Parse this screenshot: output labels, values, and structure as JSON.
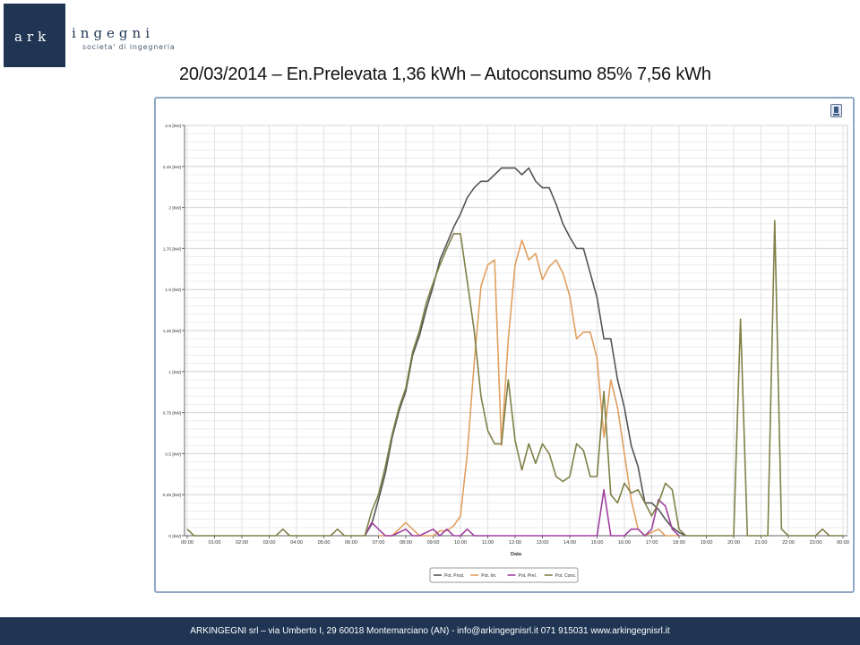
{
  "header": {
    "logo_ark": "ark",
    "logo_ingegni": "ingegni",
    "logo_sub": "societa' di ingegneria",
    "title": "20/03/2014 – En.Prelevata 1,36 kWh – Autoconsumo 85% 7,56 kWh"
  },
  "footer": {
    "text": "ARKINGEGNI srl – via Umberto I, 29 60018 Montemarciano (AN) - info@arkingegnisrl.it 071 915031 www.arkingegnisrl.it"
  },
  "colors": {
    "brand": "#1f3553",
    "frame": "#8fa8c6",
    "prod": "#555555",
    "imm": "#e0a060",
    "prel": "#a040a0",
    "cons": "#808048"
  },
  "chart_data": {
    "type": "line",
    "xlabel": "Data",
    "ylabel": "",
    "ylim": [
      0,
      2.5
    ],
    "yticks": [
      0,
      0.25,
      0.5,
      0.75,
      1,
      1.25,
      1.5,
      1.75,
      2,
      2.25,
      2.5
    ],
    "ytick_labels": [
      "0 [kW]",
      "0.25 [kW]",
      "0.5 [kW]",
      "0.75 [kW]",
      "1 [kW]",
      "1.25 [kW]",
      "1.5 [kW]",
      "1.75 [kW]",
      "2 [kW]",
      "2.25 [kW]",
      "2.5 [kW]"
    ],
    "xlim": [
      0,
      24
    ],
    "xticks": [
      "00:00",
      "01:00",
      "02:00",
      "03:00",
      "04:00",
      "05:00",
      "06:00",
      "07:00",
      "08:00",
      "09:00",
      "10:00",
      "11:00",
      "12:00",
      "13:00",
      "14:00",
      "15:00",
      "16:00",
      "17:00",
      "18:00",
      "19:00",
      "20:00",
      "21:00",
      "22:00",
      "23:00",
      "00:00"
    ],
    "grid": true,
    "legend_position": "bottom-center",
    "series": [
      {
        "name": "Pot. Prod.",
        "color": "#555555",
        "points": [
          [
            6.5,
            0
          ],
          [
            6.75,
            0.07
          ],
          [
            7,
            0.22
          ],
          [
            7.25,
            0.38
          ],
          [
            7.5,
            0.6
          ],
          [
            7.75,
            0.76
          ],
          [
            8,
            0.88
          ],
          [
            8.25,
            1.1
          ],
          [
            8.5,
            1.22
          ],
          [
            8.75,
            1.38
          ],
          [
            9,
            1.52
          ],
          [
            9.25,
            1.68
          ],
          [
            9.5,
            1.78
          ],
          [
            9.75,
            1.88
          ],
          [
            10,
            1.96
          ],
          [
            10.25,
            2.06
          ],
          [
            10.5,
            2.12
          ],
          [
            10.75,
            2.16
          ],
          [
            11,
            2.16
          ],
          [
            11.25,
            2.2
          ],
          [
            11.5,
            2.24
          ],
          [
            11.75,
            2.24
          ],
          [
            12,
            2.24
          ],
          [
            12.25,
            2.2
          ],
          [
            12.5,
            2.24
          ],
          [
            12.75,
            2.16
          ],
          [
            13,
            2.12
          ],
          [
            13.25,
            2.12
          ],
          [
            13.5,
            2.02
          ],
          [
            13.75,
            1.9
          ],
          [
            14,
            1.82
          ],
          [
            14.25,
            1.75
          ],
          [
            14.5,
            1.75
          ],
          [
            14.75,
            1.6
          ],
          [
            15,
            1.45
          ],
          [
            15.25,
            1.2
          ],
          [
            15.5,
            1.2
          ],
          [
            15.75,
            0.95
          ],
          [
            16,
            0.78
          ],
          [
            16.25,
            0.55
          ],
          [
            16.5,
            0.42
          ],
          [
            16.75,
            0.2
          ],
          [
            17,
            0.2
          ],
          [
            17.25,
            0.16
          ],
          [
            17.5,
            0.1
          ],
          [
            17.75,
            0.05
          ],
          [
            18,
            0.02
          ],
          [
            18.25,
            0
          ]
        ]
      },
      {
        "name": "Pot. Im.",
        "color": "#e0a060",
        "points": [
          [
            7,
            0
          ],
          [
            7.5,
            0
          ],
          [
            8,
            0.08
          ],
          [
            8.25,
            0.04
          ],
          [
            8.5,
            0
          ],
          [
            9,
            0
          ],
          [
            9.25,
            0.03
          ],
          [
            9.5,
            0.03
          ],
          [
            9.75,
            0.06
          ],
          [
            10,
            0.12
          ],
          [
            10.25,
            0.5
          ],
          [
            10.5,
            1.05
          ],
          [
            10.75,
            1.52
          ],
          [
            11,
            1.65
          ],
          [
            11.25,
            1.68
          ],
          [
            11.5,
            0.55
          ],
          [
            11.75,
            1.2
          ],
          [
            12,
            1.65
          ],
          [
            12.25,
            1.8
          ],
          [
            12.5,
            1.68
          ],
          [
            12.75,
            1.72
          ],
          [
            13,
            1.56
          ],
          [
            13.25,
            1.64
          ],
          [
            13.5,
            1.68
          ],
          [
            13.75,
            1.6
          ],
          [
            14,
            1.46
          ],
          [
            14.25,
            1.2
          ],
          [
            14.5,
            1.24
          ],
          [
            14.75,
            1.24
          ],
          [
            15,
            1.08
          ],
          [
            15.25,
            0.6
          ],
          [
            15.5,
            0.95
          ],
          [
            15.75,
            0.78
          ],
          [
            16,
            0.5
          ],
          [
            16.25,
            0.22
          ],
          [
            16.5,
            0.04
          ],
          [
            16.75,
            0
          ],
          [
            17,
            0.02
          ],
          [
            17.25,
            0.04
          ],
          [
            17.5,
            0
          ],
          [
            18,
            0
          ]
        ]
      },
      {
        "name": "Pot. Prel.",
        "color": "#a040a0",
        "points": [
          [
            6.5,
            0
          ],
          [
            6.75,
            0.08
          ],
          [
            7,
            0.04
          ],
          [
            7.25,
            0
          ],
          [
            7.5,
            0
          ],
          [
            8,
            0.04
          ],
          [
            8.25,
            0
          ],
          [
            8.5,
            0
          ],
          [
            9,
            0.04
          ],
          [
            9.25,
            0
          ],
          [
            9.5,
            0.04
          ],
          [
            9.75,
            0
          ],
          [
            10,
            0
          ],
          [
            10.25,
            0.04
          ],
          [
            10.5,
            0
          ],
          [
            11,
            0
          ],
          [
            15,
            0
          ],
          [
            15.25,
            0.28
          ],
          [
            15.5,
            0
          ],
          [
            16,
            0
          ],
          [
            16.25,
            0.04
          ],
          [
            16.5,
            0.04
          ],
          [
            16.75,
            0
          ],
          [
            17,
            0.04
          ],
          [
            17.25,
            0.22
          ],
          [
            17.5,
            0.18
          ],
          [
            17.75,
            0.04
          ],
          [
            18,
            0
          ]
        ]
      },
      {
        "name": "Pot. Cons.",
        "color": "#808048",
        "points": [
          [
            0,
            0.04
          ],
          [
            0.25,
            0
          ],
          [
            1,
            0
          ],
          [
            3.25,
            0
          ],
          [
            3.5,
            0.04
          ],
          [
            3.75,
            0
          ],
          [
            5.25,
            0
          ],
          [
            5.5,
            0.04
          ],
          [
            5.75,
            0
          ],
          [
            6.5,
            0
          ],
          [
            6.75,
            0.15
          ],
          [
            7,
            0.25
          ],
          [
            7.25,
            0.42
          ],
          [
            7.5,
            0.62
          ],
          [
            7.75,
            0.78
          ],
          [
            8,
            0.9
          ],
          [
            8.25,
            1.12
          ],
          [
            8.5,
            1.25
          ],
          [
            8.75,
            1.42
          ],
          [
            9,
            1.54
          ],
          [
            9.25,
            1.65
          ],
          [
            9.5,
            1.75
          ],
          [
            9.75,
            1.84
          ],
          [
            10,
            1.84
          ],
          [
            10.25,
            1.55
          ],
          [
            10.5,
            1.25
          ],
          [
            10.75,
            0.85
          ],
          [
            11,
            0.64
          ],
          [
            11.25,
            0.56
          ],
          [
            11.5,
            0.56
          ],
          [
            11.75,
            0.95
          ],
          [
            12,
            0.58
          ],
          [
            12.25,
            0.4
          ],
          [
            12.5,
            0.56
          ],
          [
            12.75,
            0.44
          ],
          [
            13,
            0.56
          ],
          [
            13.25,
            0.5
          ],
          [
            13.5,
            0.36
          ],
          [
            13.75,
            0.33
          ],
          [
            14,
            0.36
          ],
          [
            14.25,
            0.56
          ],
          [
            14.5,
            0.52
          ],
          [
            14.75,
            0.36
          ],
          [
            15,
            0.36
          ],
          [
            15.25,
            0.88
          ],
          [
            15.5,
            0.25
          ],
          [
            15.75,
            0.2
          ],
          [
            16,
            0.32
          ],
          [
            16.25,
            0.26
          ],
          [
            16.5,
            0.28
          ],
          [
            16.75,
            0.2
          ],
          [
            17,
            0.12
          ],
          [
            17.25,
            0.2
          ],
          [
            17.5,
            0.32
          ],
          [
            17.75,
            0.28
          ],
          [
            18,
            0.04
          ],
          [
            18.25,
            0
          ],
          [
            20,
            0
          ],
          [
            20.25,
            1.32
          ],
          [
            20.5,
            0
          ],
          [
            21,
            0
          ],
          [
            21.25,
            0
          ],
          [
            21.5,
            1.92
          ],
          [
            21.75,
            0.04
          ],
          [
            22,
            0
          ],
          [
            23,
            0
          ],
          [
            23.25,
            0.04
          ],
          [
            23.5,
            0
          ],
          [
            24,
            0
          ]
        ]
      }
    ]
  }
}
